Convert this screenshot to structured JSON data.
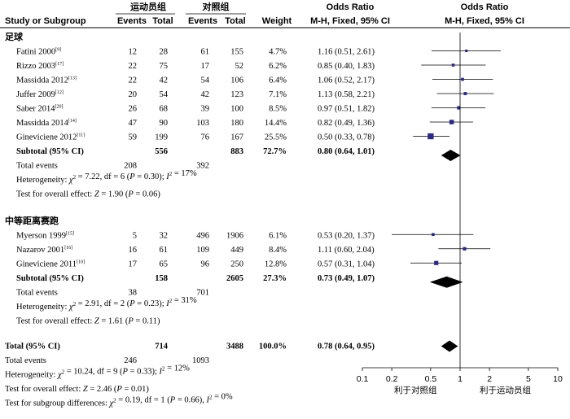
{
  "header": {
    "group1_label": "运动员组",
    "group2_label": "对照组",
    "study_label": "Study or Subgroup",
    "events_label": "Events",
    "total_label": "Total",
    "weight_label": "Weight",
    "or_label": "Odds Ratio",
    "or_method": "M-H, Fixed, 95% CI",
    "plot_or_label": "Odds Ratio",
    "plot_or_method": "M-H, Fixed, 95% CI"
  },
  "subgroups": [
    {
      "title": "足球",
      "studies": [
        {
          "name": "Fatini 2000",
          "ref": "[9]",
          "e1": "12",
          "n1": "28",
          "e2": "61",
          "n2": "155",
          "weight": "4.7%",
          "ci_text": "1.16 (0.51, 2.61)",
          "or": 1.16,
          "lo": 0.51,
          "hi": 2.61,
          "w": 4.7
        },
        {
          "name": "Rizzo 2003",
          "ref": "[17]",
          "e1": "22",
          "n1": "75",
          "e2": "17",
          "n2": "52",
          "weight": "6.2%",
          "ci_text": "0.85 (0.40, 1.83)",
          "or": 0.85,
          "lo": 0.4,
          "hi": 1.83,
          "w": 6.2
        },
        {
          "name": "Massidda 2012",
          "ref": "[13]",
          "e1": "22",
          "n1": "42",
          "e2": "54",
          "n2": "106",
          "weight": "6.4%",
          "ci_text": "1.06 (0.52, 2.17)",
          "or": 1.06,
          "lo": 0.52,
          "hi": 2.17,
          "w": 6.4
        },
        {
          "name": "Juffer 2009",
          "ref": "[12]",
          "e1": "20",
          "n1": "54",
          "e2": "42",
          "n2": "123",
          "weight": "7.1%",
          "ci_text": "1.13 (0.58, 2.21)",
          "or": 1.13,
          "lo": 0.58,
          "hi": 2.21,
          "w": 7.1
        },
        {
          "name": "Saber 2014",
          "ref": "[20]",
          "e1": "26",
          "n1": "68",
          "e2": "39",
          "n2": "100",
          "weight": "8.5%",
          "ci_text": "0.97 (0.51, 1.82)",
          "or": 0.97,
          "lo": 0.51,
          "hi": 1.82,
          "w": 8.5
        },
        {
          "name": "Massidda 2014",
          "ref": "[14]",
          "e1": "47",
          "n1": "90",
          "e2": "103",
          "n2": "180",
          "weight": "14.4%",
          "ci_text": "0.82 (0.49, 1.36)",
          "or": 0.82,
          "lo": 0.49,
          "hi": 1.36,
          "w": 14.4
        },
        {
          "name": "Gineviciene 2012",
          "ref": "[11]",
          "e1": "59",
          "n1": "199",
          "e2": "76",
          "n2": "167",
          "weight": "25.5%",
          "ci_text": "0.50 (0.33, 0.78)",
          "or": 0.5,
          "lo": 0.33,
          "hi": 0.78,
          "w": 25.5
        }
      ],
      "subtotal": {
        "label": "Subtotal (95% CI)",
        "n1": "556",
        "n2": "883",
        "weight": "72.7%",
        "ci_text": "0.80 (0.64, 1.01)",
        "or": 0.8,
        "lo": 0.64,
        "hi": 1.01
      },
      "total_events": {
        "label": "Total events",
        "e1": "208",
        "e2": "392"
      },
      "heterogeneity": "Heterogeneity: χ² = 7.22, df = 6 (P = 0.30); I² = 17%",
      "overall": "Test for overall effect: Z = 1.90 (P = 0.06)"
    },
    {
      "title": "中等距离赛跑",
      "studies": [
        {
          "name": "Myerson 1999",
          "ref": "[15]",
          "e1": "5",
          "n1": "32",
          "e2": "496",
          "n2": "1906",
          "weight": "6.1%",
          "ci_text": "0.53 (0.20, 1.37)",
          "or": 0.53,
          "lo": 0.2,
          "hi": 1.37,
          "w": 6.1
        },
        {
          "name": "Nazarov 2001",
          "ref": "[16]",
          "e1": "16",
          "n1": "61",
          "e2": "109",
          "n2": "449",
          "weight": "8.4%",
          "ci_text": "1.11 (0.60, 2.04)",
          "or": 1.11,
          "lo": 0.6,
          "hi": 2.04,
          "w": 8.4
        },
        {
          "name": "Gineviciene 2011",
          "ref": "[10]",
          "e1": "17",
          "n1": "65",
          "e2": "96",
          "n2": "250",
          "weight": "12.8%",
          "ci_text": "0.57 (0.31, 1.04)",
          "or": 0.57,
          "lo": 0.31,
          "hi": 1.04,
          "w": 12.8
        }
      ],
      "subtotal": {
        "label": "Subtotal (95% CI)",
        "n1": "158",
        "n2": "2605",
        "weight": "27.3%",
        "ci_text": "0.73 (0.49, 1.07)",
        "or": 0.73,
        "lo": 0.49,
        "hi": 1.07
      },
      "total_events": {
        "label": "Total events",
        "e1": "38",
        "e2": "701"
      },
      "heterogeneity": "Heterogeneity: χ² = 2.91, df = 2 (P = 0.23); I² = 31%",
      "overall": "Test for overall effect: Z = 1.61 (P = 0.11)"
    }
  ],
  "total": {
    "label": "Total (95% CI)",
    "n1": "714",
    "n2": "3488",
    "weight": "100.0%",
    "ci_text": "0.78 (0.64, 0.95)",
    "or": 0.78,
    "lo": 0.64,
    "hi": 0.95
  },
  "total_events": {
    "label": "Total events",
    "e1": "246",
    "e2": "1093"
  },
  "footer": {
    "heterogeneity": "Heterogeneity: χ² = 10.24, df = 9 (P = 0.33); I² = 12%",
    "overall": "Test for overall effect: Z = 2.46 (P = 0.01)",
    "subgroup": "Test for subgroup differences: χ² = 0.19, df = 1 (P = 0.66), I² = 0%"
  },
  "chart_data": {
    "type": "forest",
    "scale": "log",
    "xlim": [
      0.1,
      10
    ],
    "x_ticks": [
      "0.1",
      "0.2",
      "0.5",
      "1",
      "2",
      "5",
      "10"
    ],
    "x_tick_values": [
      0.1,
      0.2,
      0.5,
      1,
      2,
      5,
      10
    ],
    "favours_left": "利于对照组",
    "favours_right": "利于运动员组",
    "marker_color": "#2b2a82",
    "diamond_color": "#000000"
  }
}
